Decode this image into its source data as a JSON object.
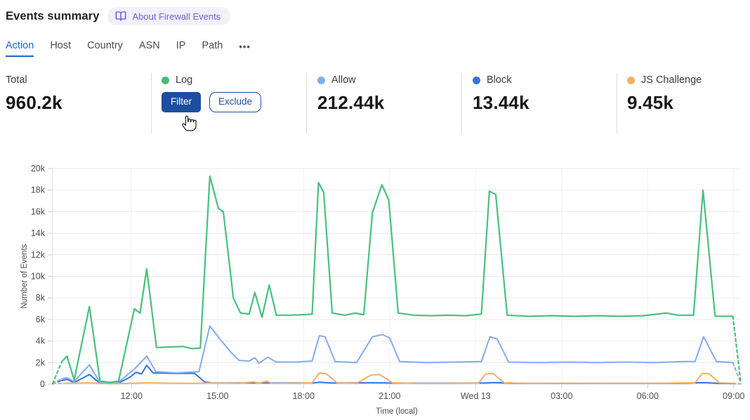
{
  "header": {
    "title": "Events summary",
    "about_badge": "About Firewall Events",
    "badge_text_color": "#6a63d6",
    "badge_bg_color": "#f1f0fb"
  },
  "tabs": {
    "items": [
      {
        "label": "Action",
        "active": true
      },
      {
        "label": "Host",
        "active": false
      },
      {
        "label": "Country",
        "active": false
      },
      {
        "label": "ASN",
        "active": false
      },
      {
        "label": "IP",
        "active": false
      },
      {
        "label": "Path",
        "active": false
      }
    ],
    "more_label": "•••",
    "active_color": "#2562cf"
  },
  "stats": {
    "cards": [
      {
        "label": "Total",
        "value": "960.2k"
      },
      {
        "label": "Log",
        "dot_color": "#41BE71",
        "filter_label": "Filter",
        "exclude_label": "Exclude",
        "button_color": "#1c4fa1"
      },
      {
        "label": "Allow",
        "value": "212.44k",
        "dot_color": "#83ABF0"
      },
      {
        "label": "Block",
        "value": "13.44k",
        "dot_color": "#3474E0"
      },
      {
        "label": "JS Challenge",
        "value": "9.45k",
        "dot_color": "#F1B066"
      }
    ]
  },
  "chart_data": {
    "type": "line",
    "title": "",
    "xlabel": "Time (local)",
    "ylabel": "Number of Events",
    "x_unit": "hours since chart start (~09:15 local, spans 24h)",
    "x_domain": [
      0,
      24
    ],
    "y_domain": [
      0,
      20000
    ],
    "grid": {
      "horizontal": true,
      "vertical": true
    },
    "legend_position": "none (stat cards above act as legend)",
    "x_ticks": [
      {
        "label": "12:00",
        "t": 2.75
      },
      {
        "label": "15:00",
        "t": 5.75
      },
      {
        "label": "18:00",
        "t": 8.75
      },
      {
        "label": "21:00",
        "t": 11.75
      },
      {
        "label": "Wed 13",
        "t": 14.75
      },
      {
        "label": "03:00",
        "t": 17.75
      },
      {
        "label": "06:00",
        "t": 20.75
      },
      {
        "label": "09:00",
        "t": 23.75
      }
    ],
    "y_ticks": [
      {
        "label": "0",
        "v": 0
      },
      {
        "label": "2k",
        "v": 2000
      },
      {
        "label": "4k",
        "v": 4000
      },
      {
        "label": "6k",
        "v": 6000
      },
      {
        "label": "8k",
        "v": 8000
      },
      {
        "label": "10k",
        "v": 10000
      },
      {
        "label": "12k",
        "v": 12000
      },
      {
        "label": "14k",
        "v": 14000
      },
      {
        "label": "16k",
        "v": 16000
      },
      {
        "label": "18k",
        "v": 18000
      },
      {
        "label": "20k",
        "v": 20000
      }
    ],
    "series": [
      {
        "name": "Block",
        "color": "#3474E0",
        "width": 2,
        "dash_head": 1,
        "dash_tail": 1,
        "points": [
          [
            0,
            40
          ],
          [
            0.32,
            350
          ],
          [
            0.5,
            450
          ],
          [
            0.75,
            150
          ],
          [
            1.28,
            900
          ],
          [
            1.65,
            80
          ],
          [
            2.3,
            120
          ],
          [
            2.7,
            650
          ],
          [
            2.9,
            1100
          ],
          [
            3.1,
            950
          ],
          [
            3.28,
            1750
          ],
          [
            3.5,
            1050
          ],
          [
            4.2,
            1000
          ],
          [
            4.95,
            1000
          ],
          [
            5.3,
            200
          ],
          [
            5.6,
            120
          ],
          [
            7,
            110
          ],
          [
            9.1,
            120
          ],
          [
            9.3,
            180
          ],
          [
            9.7,
            110
          ],
          [
            11.3,
            130
          ],
          [
            12,
            100
          ],
          [
            14,
            90
          ],
          [
            15.1,
            120
          ],
          [
            15.4,
            150
          ],
          [
            16,
            80
          ],
          [
            18,
            70
          ],
          [
            20,
            70
          ],
          [
            22,
            80
          ],
          [
            22.7,
            150
          ],
          [
            23.2,
            80
          ],
          [
            23.72,
            60
          ],
          [
            24,
            30
          ]
        ]
      },
      {
        "name": "JS Challenge",
        "color": "#F1B066",
        "width": 2,
        "dash_head": 1,
        "dash_tail": 1,
        "points": [
          [
            0,
            60
          ],
          [
            0.5,
            90
          ],
          [
            1.3,
            110
          ],
          [
            2,
            50
          ],
          [
            2.9,
            90
          ],
          [
            3.3,
            130
          ],
          [
            4,
            90
          ],
          [
            5,
            80
          ],
          [
            5.5,
            110
          ],
          [
            6.5,
            80
          ],
          [
            7.0,
            210
          ],
          [
            7.2,
            90
          ],
          [
            7.45,
            280
          ],
          [
            7.65,
            90
          ],
          [
            8.5,
            80
          ],
          [
            9.05,
            130
          ],
          [
            9.3,
            1050
          ],
          [
            9.55,
            950
          ],
          [
            9.9,
            150
          ],
          [
            10.6,
            80
          ],
          [
            11.1,
            850
          ],
          [
            11.4,
            900
          ],
          [
            11.85,
            130
          ],
          [
            12.6,
            80
          ],
          [
            13.6,
            70
          ],
          [
            14.85,
            100
          ],
          [
            15.1,
            950
          ],
          [
            15.35,
            1000
          ],
          [
            15.75,
            130
          ],
          [
            16.6,
            70
          ],
          [
            18,
            80
          ],
          [
            19.5,
            70
          ],
          [
            21,
            80
          ],
          [
            22.4,
            130
          ],
          [
            22.65,
            1000
          ],
          [
            22.9,
            950
          ],
          [
            23.25,
            130
          ],
          [
            23.72,
            80
          ],
          [
            24,
            40
          ]
        ]
      },
      {
        "name": "Allow",
        "color": "#83ABF0",
        "width": 2,
        "dash_head": 1,
        "dash_tail": 1,
        "points": [
          [
            0,
            80
          ],
          [
            0.32,
            500
          ],
          [
            0.5,
            600
          ],
          [
            0.75,
            250
          ],
          [
            1.28,
            1800
          ],
          [
            1.65,
            150
          ],
          [
            2.3,
            200
          ],
          [
            2.85,
            1400
          ],
          [
            3.28,
            2600
          ],
          [
            3.6,
            1150
          ],
          [
            4.3,
            1050
          ],
          [
            5.1,
            1150
          ],
          [
            5.48,
            5400
          ],
          [
            5.8,
            4300
          ],
          [
            6.2,
            3000
          ],
          [
            6.5,
            2200
          ],
          [
            6.85,
            2150
          ],
          [
            7.05,
            2450
          ],
          [
            7.2,
            1950
          ],
          [
            7.5,
            2500
          ],
          [
            7.8,
            2050
          ],
          [
            8.5,
            2050
          ],
          [
            9.05,
            2150
          ],
          [
            9.3,
            4500
          ],
          [
            9.5,
            4400
          ],
          [
            9.85,
            2100
          ],
          [
            10.6,
            2000
          ],
          [
            11.15,
            4400
          ],
          [
            11.5,
            4600
          ],
          [
            11.75,
            4300
          ],
          [
            12.1,
            2100
          ],
          [
            13,
            2000
          ],
          [
            14,
            2050
          ],
          [
            14.95,
            2100
          ],
          [
            15.25,
            4400
          ],
          [
            15.5,
            4200
          ],
          [
            15.9,
            2050
          ],
          [
            17,
            2000
          ],
          [
            18,
            2050
          ],
          [
            19,
            2000
          ],
          [
            20,
            2050
          ],
          [
            21,
            2000
          ],
          [
            22,
            2100
          ],
          [
            22.4,
            2100
          ],
          [
            22.7,
            4400
          ],
          [
            23.15,
            2100
          ],
          [
            23.72,
            2000
          ],
          [
            24,
            80
          ]
        ]
      },
      {
        "name": "Log",
        "color": "#47C17C",
        "width": 2.2,
        "dash_head": 1,
        "dash_tail": 1,
        "points": [
          [
            0,
            50
          ],
          [
            0.32,
            2100
          ],
          [
            0.5,
            2600
          ],
          [
            0.75,
            400
          ],
          [
            1.28,
            7200
          ],
          [
            1.65,
            300
          ],
          [
            2.0,
            150
          ],
          [
            2.3,
            300
          ],
          [
            2.85,
            7000
          ],
          [
            3.05,
            6600
          ],
          [
            3.28,
            10700
          ],
          [
            3.62,
            3400
          ],
          [
            4.1,
            3450
          ],
          [
            4.55,
            3500
          ],
          [
            4.85,
            3300
          ],
          [
            5.15,
            3350
          ],
          [
            5.48,
            19300
          ],
          [
            5.78,
            16300
          ],
          [
            5.95,
            16000
          ],
          [
            6.3,
            8000
          ],
          [
            6.55,
            6600
          ],
          [
            6.85,
            6500
          ],
          [
            7.05,
            8500
          ],
          [
            7.3,
            6200
          ],
          [
            7.55,
            9200
          ],
          [
            7.8,
            6400
          ],
          [
            8.3,
            6400
          ],
          [
            8.8,
            6450
          ],
          [
            9.05,
            6500
          ],
          [
            9.27,
            18700
          ],
          [
            9.45,
            17800
          ],
          [
            9.75,
            6600
          ],
          [
            10.2,
            6400
          ],
          [
            10.55,
            6600
          ],
          [
            10.85,
            6450
          ],
          [
            11.15,
            15900
          ],
          [
            11.48,
            18500
          ],
          [
            11.72,
            17100
          ],
          [
            12.05,
            6600
          ],
          [
            12.6,
            6400
          ],
          [
            13.2,
            6350
          ],
          [
            13.8,
            6400
          ],
          [
            14.4,
            6350
          ],
          [
            14.95,
            6500
          ],
          [
            15.23,
            17900
          ],
          [
            15.45,
            17600
          ],
          [
            15.85,
            6400
          ],
          [
            16.6,
            6300
          ],
          [
            17.4,
            6350
          ],
          [
            18.2,
            6300
          ],
          [
            19.0,
            6350
          ],
          [
            19.8,
            6300
          ],
          [
            20.6,
            6350
          ],
          [
            21.4,
            6600
          ],
          [
            21.8,
            6400
          ],
          [
            22.35,
            6400
          ],
          [
            22.68,
            18000
          ],
          [
            23.1,
            6300
          ],
          [
            23.72,
            6300
          ],
          [
            24,
            100
          ]
        ]
      }
    ]
  }
}
